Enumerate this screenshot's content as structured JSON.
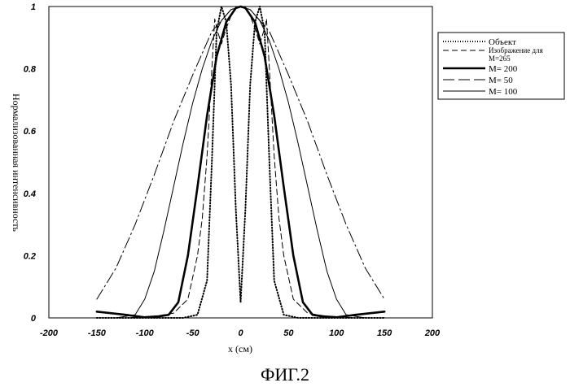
{
  "caption": "ФИГ.2",
  "chart_data": {
    "type": "line",
    "xlabel": "x (см)",
    "ylabel": "Нормализованная интенсивность",
    "xlim": [
      -200,
      200
    ],
    "ylim": [
      0,
      1
    ],
    "xticks": [
      "-200",
      "-150",
      "-100",
      "-50",
      "0",
      "50",
      "100",
      "150",
      "200"
    ],
    "yticks": [
      "0",
      "0.2",
      "0.4",
      "0.6",
      "0.8",
      "1"
    ],
    "grid": false,
    "legend_position": "right",
    "legend": {
      "object": "Объект",
      "image_line1": "Изображение  для",
      "image_line2": "M=265",
      "m200": "M= 200",
      "m50": "M= 50",
      "m100": "M= 100"
    },
    "series": [
      {
        "name": "Объект",
        "style": "dotted",
        "x": [
          -150,
          -100,
          -60,
          -45,
          -35,
          -30,
          -25,
          -20,
          -15,
          -10,
          -5,
          0,
          5,
          10,
          15,
          20,
          25,
          30,
          35,
          45,
          60,
          100,
          150
        ],
        "y": [
          0,
          0,
          0,
          0.01,
          0.12,
          0.5,
          0.92,
          1.0,
          0.95,
          0.75,
          0.35,
          0.05,
          0.35,
          0.75,
          0.95,
          1.0,
          0.92,
          0.5,
          0.12,
          0.01,
          0,
          0,
          0
        ]
      },
      {
        "name": "Изображение для M=265",
        "style": "dashed",
        "x": [
          -150,
          -120,
          -90,
          -70,
          -55,
          -45,
          -40,
          -35,
          -30,
          -27,
          -24,
          -20,
          -15,
          -10,
          -5,
          0,
          5,
          10,
          15,
          20,
          24,
          27,
          30,
          35,
          40,
          45,
          55,
          70,
          90,
          120,
          150
        ],
        "y": [
          0,
          0,
          0.005,
          0.015,
          0.06,
          0.2,
          0.32,
          0.52,
          0.8,
          0.96,
          0.92,
          0.88,
          0.93,
          0.97,
          0.995,
          1.0,
          0.995,
          0.97,
          0.93,
          0.88,
          0.92,
          0.96,
          0.8,
          0.52,
          0.32,
          0.2,
          0.06,
          0.015,
          0.005,
          0,
          0
        ]
      },
      {
        "name": "M= 200",
        "style": "thick",
        "x": [
          -150,
          -120,
          -100,
          -85,
          -75,
          -65,
          -55,
          -45,
          -35,
          -25,
          -15,
          -5,
          0,
          5,
          15,
          25,
          35,
          45,
          55,
          65,
          75,
          85,
          100,
          120,
          150
        ],
        "y": [
          0.02,
          0.01,
          0.002,
          0.005,
          0.01,
          0.05,
          0.2,
          0.42,
          0.65,
          0.84,
          0.95,
          0.995,
          1.0,
          0.995,
          0.95,
          0.84,
          0.65,
          0.42,
          0.2,
          0.05,
          0.01,
          0.005,
          0.002,
          0.01,
          0.02
        ]
      },
      {
        "name": "M= 50",
        "style": "dashdot",
        "x": [
          -150,
          -130,
          -110,
          -90,
          -70,
          -50,
          -30,
          -10,
          0,
          10,
          30,
          50,
          70,
          90,
          110,
          130,
          150
        ],
        "y": [
          0.06,
          0.16,
          0.3,
          0.46,
          0.63,
          0.78,
          0.92,
          0.99,
          1.0,
          0.99,
          0.92,
          0.78,
          0.63,
          0.46,
          0.3,
          0.16,
          0.06
        ]
      },
      {
        "name": "M= 100",
        "style": "thin",
        "x": [
          -150,
          -130,
          -110,
          -100,
          -90,
          -80,
          -70,
          -60,
          -50,
          -40,
          -30,
          -20,
          -10,
          0,
          10,
          20,
          30,
          40,
          50,
          60,
          70,
          80,
          90,
          100,
          110,
          130,
          150
        ],
        "y": [
          0,
          0,
          0.01,
          0.06,
          0.15,
          0.28,
          0.42,
          0.56,
          0.69,
          0.8,
          0.89,
          0.955,
          0.99,
          1.0,
          0.99,
          0.955,
          0.89,
          0.8,
          0.69,
          0.56,
          0.42,
          0.28,
          0.15,
          0.06,
          0.01,
          0,
          0
        ]
      }
    ]
  }
}
